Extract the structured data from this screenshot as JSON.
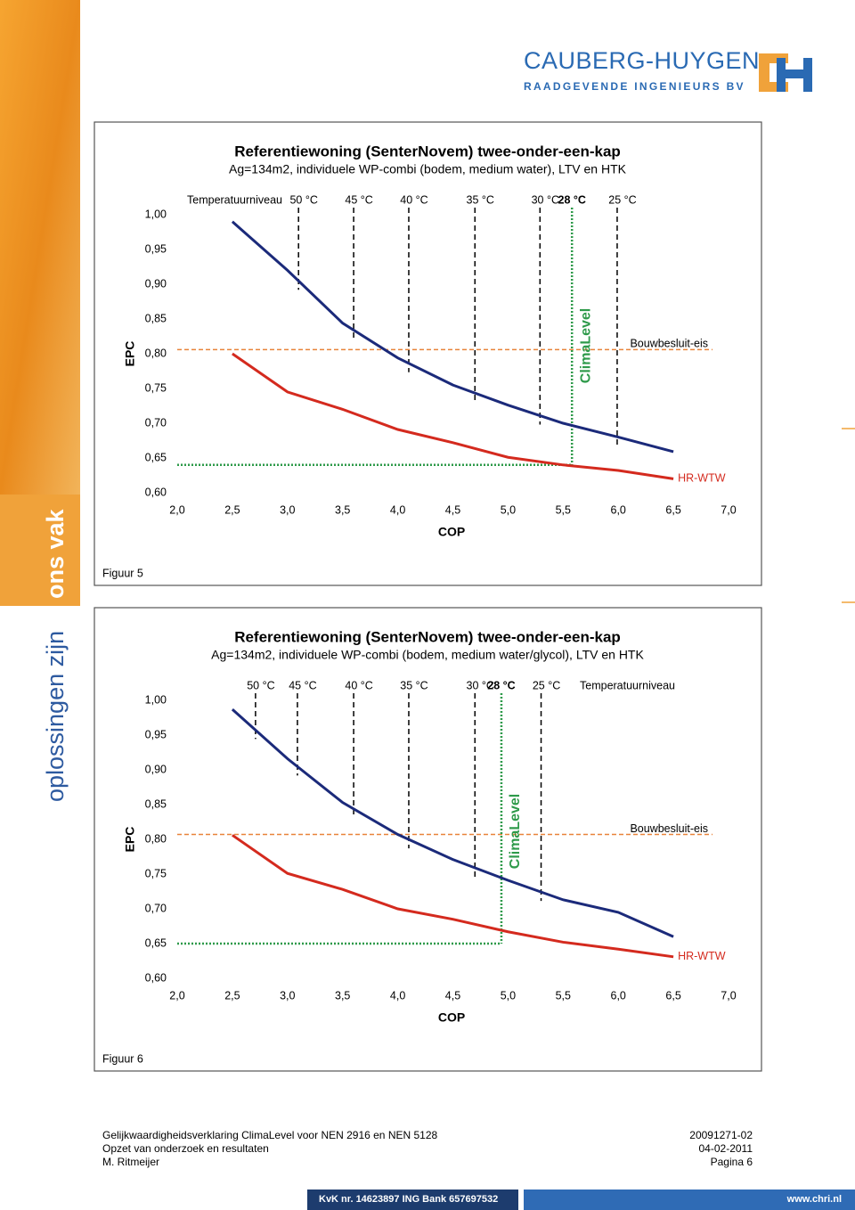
{
  "header": {
    "company": "CAUBERG-HUYGEN",
    "tagline": "RAADGEVENDE INGENIEURS BV"
  },
  "sidebar": {
    "text_1": "oplossingen zijn",
    "text_2": "ons vak"
  },
  "chart_data": [
    {
      "type": "line",
      "title": "Referentiewoning (SenterNovem) twee-onder-een-kap",
      "subtitle": "Ag=134m2, individuele WP-combi (bodem, medium water), LTV en HTK",
      "x_label": "COP",
      "y_label": "EPC",
      "caption": "Figuur 5",
      "marker_title": "Temperatuurniveau",
      "x": [
        2.5,
        3.0,
        3.5,
        4.0,
        4.5,
        5.0,
        5.5,
        6.0,
        6.5
      ],
      "series": [
        {
          "color": "#1b2a7a",
          "values": [
            0.99,
            0.92,
            0.844,
            0.794,
            0.755,
            0.726,
            0.7,
            0.68,
            0.659
          ]
        },
        {
          "name": "HR-WTW",
          "color": "#d42a1e",
          "values": [
            0.8,
            0.745,
            0.72,
            0.691,
            0.672,
            0.651,
            0.64,
            0.632,
            0.62
          ]
        }
      ],
      "markers": [
        {
          "label": "50 °C",
          "x": 3.1
        },
        {
          "label": "45 °C",
          "x": 3.6
        },
        {
          "label": "40 °C",
          "x": 4.1
        },
        {
          "label": "35 °C",
          "x": 4.7
        },
        {
          "label": "30 °C",
          "x": 5.29
        },
        {
          "label": "25 °C",
          "x": 5.99
        }
      ],
      "climalevel": {
        "label": "ClimaLevel",
        "temperature": "28 °C",
        "color": "#2e9a4a",
        "x": 5.58,
        "y": 0.64
      },
      "requirement": {
        "label": "Bouwbesluit-eis",
        "color": "#e8843a",
        "y": 0.806
      },
      "xlim": [
        2,
        7
      ],
      "ylim": [
        0.6,
        1.0
      ],
      "xticks": [
        {
          "value": 2,
          "label": "2,0"
        },
        {
          "value": 2.5,
          "label": "2,5"
        },
        {
          "value": 3,
          "label": "3,0"
        },
        {
          "value": 3.5,
          "label": "3,5"
        },
        {
          "value": 4,
          "label": "4,0"
        },
        {
          "value": 4.5,
          "label": "4,5"
        },
        {
          "value": 5,
          "label": "5,0"
        },
        {
          "value": 5.5,
          "label": "5,5"
        },
        {
          "value": 6,
          "label": "6,0"
        },
        {
          "value": 6.5,
          "label": "6,5"
        },
        {
          "value": 7,
          "label": "7,0"
        }
      ],
      "yticks": [
        {
          "value": 0.6,
          "label": "0,60"
        },
        {
          "value": 0.65,
          "label": "0,65"
        },
        {
          "value": 0.7,
          "label": "0,70"
        },
        {
          "value": 0.75,
          "label": "0,75"
        },
        {
          "value": 0.8,
          "label": "0,80"
        },
        {
          "value": 0.85,
          "label": "0,85"
        },
        {
          "value": 0.9,
          "label": "0,90"
        },
        {
          "value": 0.95,
          "label": "0,95"
        },
        {
          "value": 1,
          "label": "1,00"
        }
      ]
    },
    {
      "type": "line",
      "title": "Referentiewoning (SenterNovem) twee-onder-een-kap",
      "subtitle": "Ag=134m2, individuele WP-combi (bodem, medium water/glycol), LTV en HTK",
      "x_label": "COP",
      "y_label": "EPC",
      "caption": "Figuur 6",
      "marker_title": "Temperatuurniveau",
      "x": [
        2.5,
        3.0,
        3.5,
        4.0,
        4.5,
        5.0,
        5.5,
        6.0,
        6.5
      ],
      "series": [
        {
          "color": "#1b2a7a",
          "values": [
            0.987,
            0.916,
            0.853,
            0.807,
            0.771,
            0.741,
            0.713,
            0.695,
            0.66
          ]
        },
        {
          "name": "HR-WTW",
          "color": "#d42a1e",
          "values": [
            0.806,
            0.751,
            0.728,
            0.7,
            0.685,
            0.667,
            0.652,
            0.642,
            0.631
          ]
        }
      ],
      "markers": [
        {
          "label": "50 °C",
          "x": 2.71
        },
        {
          "label": "45 °C",
          "x": 3.09
        },
        {
          "label": "40 °C",
          "x": 3.6
        },
        {
          "label": "35 °C",
          "x": 4.1
        },
        {
          "label": "30 °C",
          "x": 4.7
        },
        {
          "label": "25 °C",
          "x": 5.3
        }
      ],
      "climalevel": {
        "label": "ClimaLevel",
        "temperature": "28 °C",
        "color": "#2e9a4a",
        "x": 4.94,
        "y": 0.65
      },
      "requirement": {
        "label": "Bouwbesluit-eis",
        "color": "#e8843a",
        "y": 0.807
      },
      "xlim": [
        2,
        7
      ],
      "ylim": [
        0.6,
        1.0
      ],
      "xticks": [
        {
          "value": 2,
          "label": "2,0"
        },
        {
          "value": 2.5,
          "label": "2,5"
        },
        {
          "value": 3,
          "label": "3,0"
        },
        {
          "value": 3.5,
          "label": "3,5"
        },
        {
          "value": 4,
          "label": "4,0"
        },
        {
          "value": 4.5,
          "label": "4,5"
        },
        {
          "value": 5,
          "label": "5,0"
        },
        {
          "value": 5.5,
          "label": "5,5"
        },
        {
          "value": 6,
          "label": "6,0"
        },
        {
          "value": 6.5,
          "label": "6,5"
        },
        {
          "value": 7,
          "label": "7,0"
        }
      ],
      "yticks": [
        {
          "value": 0.6,
          "label": "0,60"
        },
        {
          "value": 0.65,
          "label": "0,65"
        },
        {
          "value": 0.7,
          "label": "0,70"
        },
        {
          "value": 0.75,
          "label": "0,75"
        },
        {
          "value": 0.8,
          "label": "0,80"
        },
        {
          "value": 0.85,
          "label": "0,85"
        },
        {
          "value": 0.9,
          "label": "0,90"
        },
        {
          "value": 0.95,
          "label": "0,95"
        },
        {
          "value": 1,
          "label": "1,00"
        }
      ]
    }
  ],
  "footer": {
    "left": [
      "Gelijkwaardigheidsverklaring ClimaLevel voor NEN 2916 en NEN 5128",
      "Opzet van onderzoek en resultaten",
      "M. Ritmeijer"
    ],
    "right": [
      "20091271-02",
      "04-02-2011",
      "Pagina 6"
    ],
    "bar_left": "KvK nr. 14623897 ING Bank 657697532",
    "bar_right": "www.chri.nl"
  }
}
